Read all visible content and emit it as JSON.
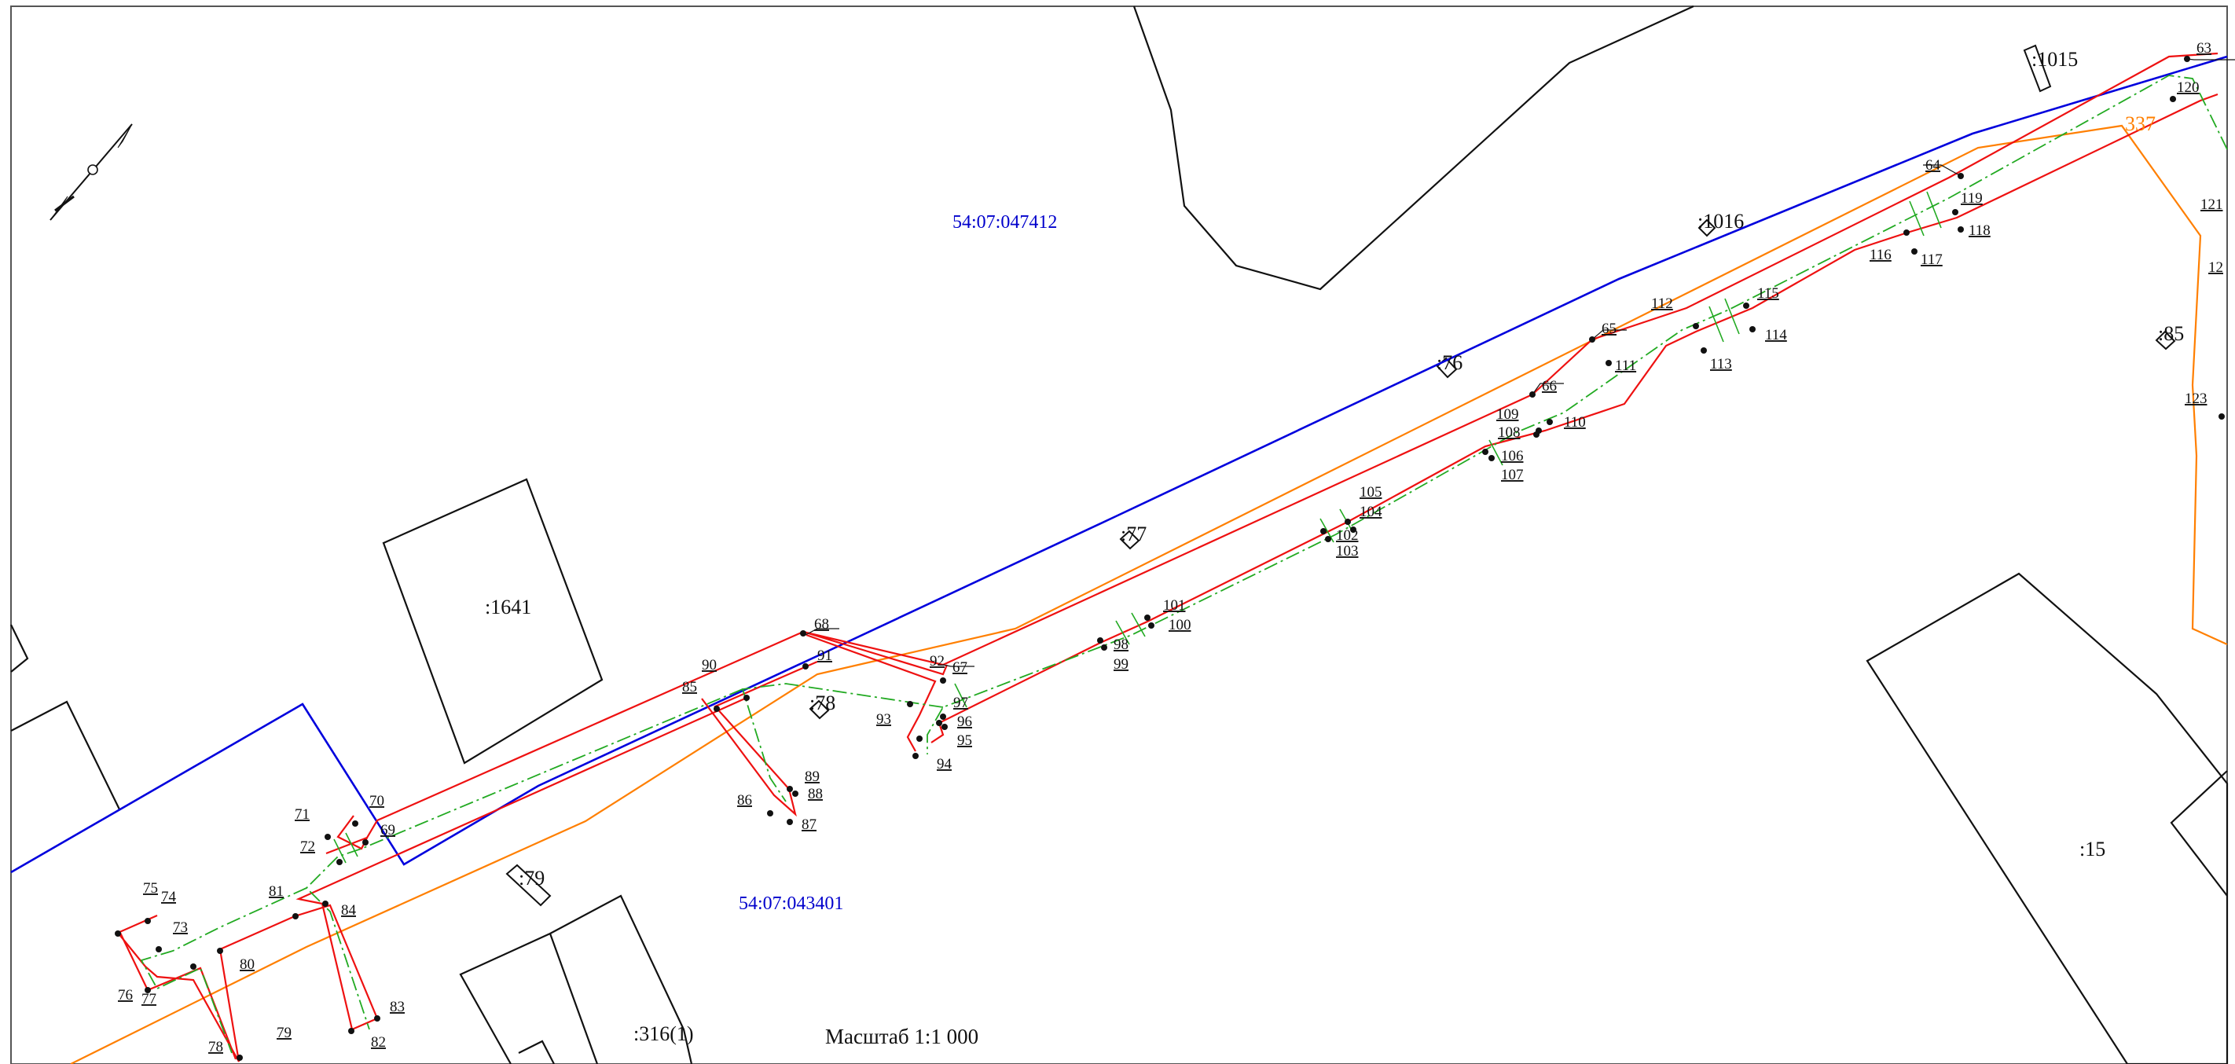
{
  "map": {
    "scale_text": "Масштаб 1:1 000",
    "colors": {
      "blue": "#0000dd",
      "red": "#ee1111",
      "orange": "#ff7f00",
      "green": "#22aa22",
      "black": "#111111",
      "quarter_text": "#0000cc",
      "orange_text": "#ff7f00"
    },
    "quarters": [
      {
        "id": "q-047412",
        "text": "54:07:047412"
      },
      {
        "id": "q-043401",
        "text": "54:07:043401"
      }
    ],
    "parcels": [
      {
        "id": "1641",
        "text": ":1641"
      },
      {
        "id": "15",
        "text": ":15"
      },
      {
        "id": "316",
        "text": ":316(1)"
      },
      {
        "id": "1015",
        "text": ":1015"
      },
      {
        "id": "1016",
        "text": ":1016"
      },
      {
        "id": "76",
        "text": ":76"
      },
      {
        "id": "77",
        "text": ":77"
      },
      {
        "id": "78",
        "text": ":78"
      },
      {
        "id": "79",
        "text": ":79"
      },
      {
        "id": "85",
        "text": ":85"
      },
      {
        "id": "337",
        "text": "337"
      }
    ],
    "points": [
      "63",
      "64",
      "65",
      "66",
      "67",
      "68",
      "69",
      "70",
      "71",
      "72",
      "73",
      "74",
      "75",
      "76",
      "77",
      "78",
      "79",
      "80",
      "81",
      "82",
      "83",
      "84",
      "85",
      "86",
      "87",
      "88",
      "89",
      "90",
      "91",
      "92",
      "93",
      "94",
      "95",
      "96",
      "97",
      "98",
      "99",
      "100",
      "101",
      "102",
      "103",
      "104",
      "105",
      "106",
      "107",
      "108",
      "109",
      "110",
      "111",
      "112",
      "113",
      "114",
      "115",
      "116",
      "117",
      "118",
      "119",
      "120",
      "121",
      "12",
      "123"
    ],
    "north_arrow_icon": "north-arrow-icon"
  }
}
